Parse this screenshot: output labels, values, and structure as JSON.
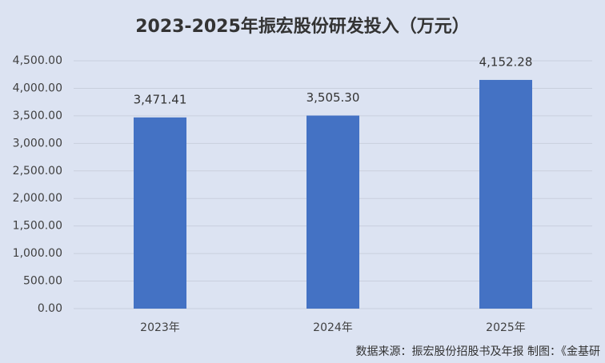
{
  "chart_data": {
    "type": "bar",
    "title": "2023-2025年振宏股份研发投入（万元）",
    "categories": [
      "2023年",
      "2024年",
      "2025年"
    ],
    "values": [
      3471.41,
      3505.3,
      4152.28
    ],
    "value_labels": [
      "3,471.41",
      "3,505.30",
      "4,152.28"
    ],
    "color": "#4472c4",
    "ylim": [
      0,
      4500
    ],
    "yticks": [
      {
        "value": 0,
        "label": "0.00"
      },
      {
        "value": 500,
        "label": "500.00"
      },
      {
        "value": 1000,
        "label": "1,000.00"
      },
      {
        "value": 1500,
        "label": "1,500.00"
      },
      {
        "value": 2000,
        "label": "2,000.00"
      },
      {
        "value": 2500,
        "label": "2,500.00"
      },
      {
        "value": 3000,
        "label": "3,000.00"
      },
      {
        "value": 3500,
        "label": "3,500.00"
      },
      {
        "value": 4000,
        "label": "4,000.00"
      },
      {
        "value": 4500,
        "label": "4,500.00"
      }
    ],
    "grid": true,
    "source": "数据来源：振宏股份招股书及年报    制图：《金基研"
  }
}
